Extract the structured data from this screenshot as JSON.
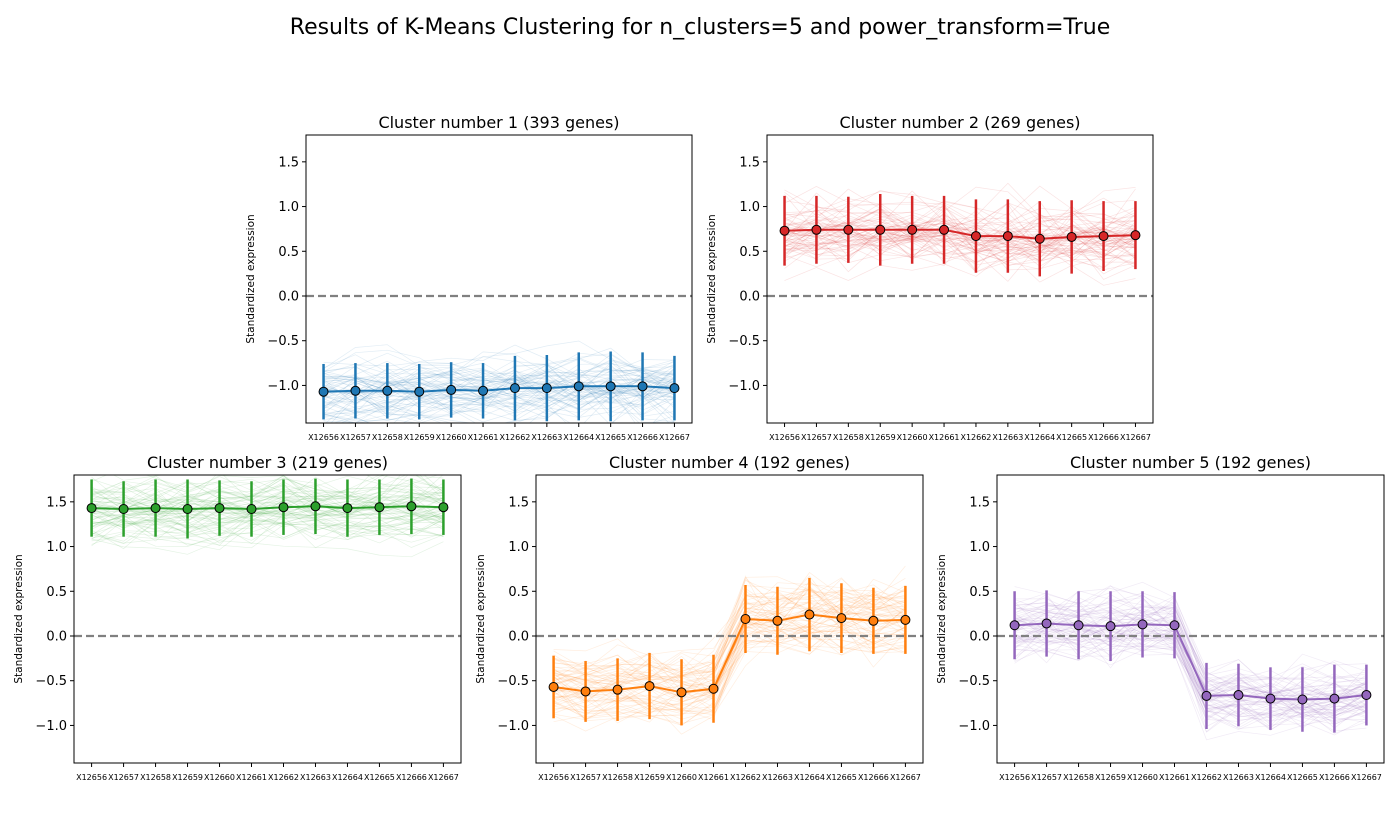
{
  "figure_title": "Results of K-Means Clustering for n_clusters=5 and power_transform=True",
  "chart_data": [
    {
      "type": "line",
      "title": "Cluster number 1 (393 genes)",
      "ylabel": "Standardized expression",
      "xlabel": "",
      "categories": [
        "X12656",
        "X12657",
        "X12658",
        "X12659",
        "X12660",
        "X12661",
        "X12662",
        "X12663",
        "X12664",
        "X12665",
        "X12666",
        "X12667"
      ],
      "ylim": [
        -1.42,
        1.8
      ],
      "yticks": [
        -1.0,
        -0.5,
        0.0,
        0.5,
        1.0,
        1.5
      ],
      "reference_line": 0.0,
      "color": "#1f77b4",
      "series": [
        {
          "values": [
            -1.07,
            -1.06,
            -1.06,
            -1.07,
            -1.05,
            -1.06,
            -1.03,
            -1.03,
            -1.01,
            -1.01,
            -1.01,
            -1.03
          ],
          "error": [
            0.31,
            0.31,
            0.31,
            0.31,
            0.31,
            0.31,
            0.36,
            0.37,
            0.38,
            0.39,
            0.38,
            0.36
          ]
        }
      ]
    },
    {
      "type": "line",
      "title": "Cluster number 2 (269 genes)",
      "ylabel": "Standardized expression",
      "xlabel": "",
      "categories": [
        "X12656",
        "X12657",
        "X12658",
        "X12659",
        "X12660",
        "X12661",
        "X12662",
        "X12663",
        "X12664",
        "X12665",
        "X12666",
        "X12667"
      ],
      "ylim": [
        -1.42,
        1.8
      ],
      "yticks": [
        -1.0,
        -0.5,
        0.0,
        0.5,
        1.0,
        1.5
      ],
      "reference_line": 0.0,
      "color": "#d62728",
      "series": [
        {
          "values": [
            0.73,
            0.74,
            0.74,
            0.74,
            0.74,
            0.74,
            0.67,
            0.67,
            0.64,
            0.66,
            0.67,
            0.68
          ],
          "error": [
            0.39,
            0.38,
            0.37,
            0.4,
            0.38,
            0.38,
            0.41,
            0.41,
            0.42,
            0.41,
            0.39,
            0.38
          ]
        }
      ]
    },
    {
      "type": "line",
      "title": "Cluster number 3 (219 genes)",
      "ylabel": "Standardized expression",
      "xlabel": "",
      "categories": [
        "X12656",
        "X12657",
        "X12658",
        "X12659",
        "X12660",
        "X12661",
        "X12662",
        "X12663",
        "X12664",
        "X12665",
        "X12666",
        "X12667"
      ],
      "ylim": [
        -1.42,
        1.8
      ],
      "yticks": [
        -1.0,
        -0.5,
        0.0,
        0.5,
        1.0,
        1.5
      ],
      "reference_line": 0.0,
      "color": "#2ca02c",
      "series": [
        {
          "values": [
            1.43,
            1.42,
            1.43,
            1.42,
            1.43,
            1.42,
            1.44,
            1.45,
            1.43,
            1.44,
            1.45,
            1.44
          ],
          "error": [
            0.32,
            0.31,
            0.32,
            0.33,
            0.31,
            0.31,
            0.31,
            0.31,
            0.32,
            0.31,
            0.31,
            0.31
          ]
        }
      ]
    },
    {
      "type": "line",
      "title": "Cluster number 4 (192 genes)",
      "ylabel": "Standardized expression",
      "xlabel": "",
      "categories": [
        "X12656",
        "X12657",
        "X12658",
        "X12659",
        "X12660",
        "X12661",
        "X12662",
        "X12663",
        "X12664",
        "X12665",
        "X12666",
        "X12667"
      ],
      "ylim": [
        -1.42,
        1.8
      ],
      "yticks": [
        -1.0,
        -0.5,
        0.0,
        0.5,
        1.0,
        1.5
      ],
      "reference_line": 0.0,
      "color": "#ff7f0e",
      "series": [
        {
          "values": [
            -0.57,
            -0.62,
            -0.6,
            -0.56,
            -0.63,
            -0.59,
            0.19,
            0.17,
            0.24,
            0.2,
            0.17,
            0.18
          ],
          "error": [
            0.35,
            0.34,
            0.35,
            0.37,
            0.37,
            0.38,
            0.38,
            0.38,
            0.41,
            0.39,
            0.37,
            0.38
          ]
        }
      ]
    },
    {
      "type": "line",
      "title": "Cluster number 5 (192 genes)",
      "ylabel": "Standardized expression",
      "xlabel": "",
      "categories": [
        "X12656",
        "X12657",
        "X12658",
        "X12659",
        "X12660",
        "X12661",
        "X12662",
        "X12663",
        "X12664",
        "X12665",
        "X12666",
        "X12667"
      ],
      "ylim": [
        -1.42,
        1.8
      ],
      "yticks": [
        -1.0,
        -0.5,
        0.0,
        0.5,
        1.0,
        1.5
      ],
      "reference_line": 0.0,
      "color": "#9467bd",
      "series": [
        {
          "values": [
            0.12,
            0.14,
            0.12,
            0.11,
            0.13,
            0.12,
            -0.67,
            -0.66,
            -0.7,
            -0.71,
            -0.7,
            -0.66
          ],
          "error": [
            0.38,
            0.37,
            0.38,
            0.39,
            0.37,
            0.37,
            0.37,
            0.35,
            0.35,
            0.36,
            0.38,
            0.34
          ]
        }
      ]
    }
  ]
}
